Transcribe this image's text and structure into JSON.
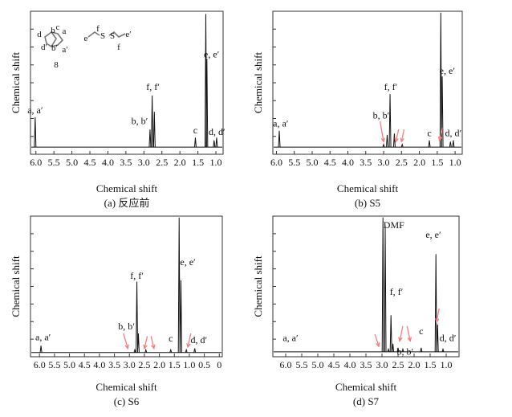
{
  "chart_data": [
    {
      "type": "line",
      "caption": "(a) 反应前",
      "xlabel": "Chemical shift",
      "ylabel": "Chemical shift",
      "xlim": [
        6.15,
        0.8
      ],
      "xticks": [
        "6.0",
        "5.5",
        "5.0",
        "4.5",
        "4.0",
        "3.5",
        "3.0",
        "2.5",
        "2.0",
        "1.5",
        "1.0"
      ],
      "tick_values": [
        6.0,
        5.5,
        5.0,
        4.5,
        4.0,
        3.5,
        3.0,
        2.5,
        2.0,
        1.5,
        1.0
      ],
      "ylim": [
        0,
        1
      ],
      "peaks": [
        {
          "x": 6.02,
          "y": 0.22,
          "label": "a, a′",
          "lx": 6.02,
          "ly": 0.25
        },
        {
          "x": 2.83,
          "y": 0.13,
          "label": "b, b′",
          "lx": 3.12,
          "ly": 0.17
        },
        {
          "x": 2.77,
          "y": 0.38,
          "label": "f, f′",
          "lx": 2.75,
          "ly": 0.42
        },
        {
          "x": 2.71,
          "y": 0.26
        },
        {
          "x": 1.57,
          "y": 0.07,
          "label": "c",
          "lx": 1.57,
          "ly": 0.1
        },
        {
          "x": 1.28,
          "y": 0.98,
          "label": "e, e′",
          "lx": 1.12,
          "ly": 0.66
        },
        {
          "x": 1.25,
          "y": 0.65
        },
        {
          "x": 1.05,
          "y": 0.05,
          "label": "d, d′",
          "lx": 0.97,
          "ly": 0.09
        },
        {
          "x": 0.98,
          "y": 0.07
        }
      ],
      "arrows": [],
      "annotations": [
        "d",
        "b",
        "c",
        "a",
        "d′",
        "b′",
        "a′",
        "8",
        "f",
        "S",
        "S",
        "e",
        "e′",
        "f"
      ]
    },
    {
      "type": "line",
      "caption": "(b) S5",
      "xlabel": "Chemical shift",
      "ylabel": "Chemical shift",
      "xlim": [
        6.1,
        0.8
      ],
      "xticks": [
        "6.0",
        "5.5",
        "5.0",
        "4.5",
        "4.0",
        "3.5",
        "3.0",
        "2.5",
        "2.0",
        "1.5",
        "1.0"
      ],
      "tick_values": [
        6.0,
        5.5,
        5.0,
        4.5,
        4.0,
        3.5,
        3.0,
        2.5,
        2.0,
        1.5,
        1.0
      ],
      "ylim": [
        0,
        1
      ],
      "peaks": [
        {
          "x": 5.92,
          "y": 0.12,
          "label": "a, a′",
          "lx": 5.88,
          "ly": 0.15
        },
        {
          "x": 3.0,
          "y": 0.02
        },
        {
          "x": 2.9,
          "y": 0.09,
          "label": "b, b′",
          "lx": 3.07,
          "ly": 0.21
        },
        {
          "x": 2.82,
          "y": 0.39,
          "label": "f, f′",
          "lx": 2.8,
          "ly": 0.42
        },
        {
          "x": 2.7,
          "y": 0.1
        },
        {
          "x": 2.48,
          "y": 0.02
        },
        {
          "x": 1.72,
          "y": 0.05,
          "label": "c",
          "lx": 1.72,
          "ly": 0.08
        },
        {
          "x": 1.4,
          "y": 0.99,
          "label": "e, e′",
          "lx": 1.22,
          "ly": 0.54
        },
        {
          "x": 1.36,
          "y": 0.52
        },
        {
          "x": 1.13,
          "y": 0.04,
          "label": "d, d′",
          "lx": 1.05,
          "ly": 0.08
        },
        {
          "x": 1.05,
          "y": 0.05
        }
      ],
      "arrows": [
        {
          "x1": 3.1,
          "y1": 0.19,
          "x2": 3.0,
          "y2": 0.04
        },
        {
          "x1": 2.58,
          "y1": 0.13,
          "x2": 2.66,
          "y2": 0.04
        },
        {
          "x1": 2.43,
          "y1": 0.13,
          "x2": 2.5,
          "y2": 0.04
        },
        {
          "x1": 1.35,
          "y1": 0.14,
          "x2": 1.44,
          "y2": 0.05
        }
      ],
      "annotations": []
    },
    {
      "type": "line",
      "caption": "(c) S6",
      "xlabel": "Chemical shift",
      "ylabel": "Chemical shift",
      "xlim": [
        6.3,
        -0.1
      ],
      "xticks": [
        "6.0",
        "5.5",
        "5.0",
        "4.5",
        "4.0",
        "3.5",
        "3.0",
        "2.5",
        "2.0",
        "1.5",
        "1.0",
        "0.5",
        "0"
      ],
      "tick_values": [
        6.0,
        5.5,
        5.0,
        4.5,
        4.0,
        3.5,
        3.0,
        2.5,
        2.0,
        1.5,
        1.0,
        0.5,
        0.0
      ],
      "ylim": [
        0,
        1
      ],
      "peaks": [
        {
          "x": 5.95,
          "y": 0.05,
          "label": "a, a′",
          "lx": 5.88,
          "ly": 0.09
        },
        {
          "x": 2.82,
          "y": 0.02
        },
        {
          "x": 2.75,
          "y": 0.52,
          "label": "f, f′",
          "lx": 2.75,
          "ly": 0.54
        },
        {
          "x": 2.7,
          "y": 0.14,
          "label": "b, b′",
          "lx": 3.1,
          "ly": 0.17
        },
        {
          "x": 2.45,
          "y": 0.02
        },
        {
          "x": 1.62,
          "y": 0.02,
          "label": "c",
          "lx": 1.62,
          "ly": 0.08
        },
        {
          "x": 1.34,
          "y": 0.99,
          "label": "e, e′",
          "lx": 1.05,
          "ly": 0.64
        },
        {
          "x": 1.28,
          "y": 0.53
        },
        {
          "x": 1.1,
          "y": 0.02
        },
        {
          "x": 0.82,
          "y": 0.03,
          "label": "d, d′",
          "lx": 0.68,
          "ly": 0.07
        }
      ],
      "arrows": [
        {
          "x1": 3.2,
          "y1": 0.14,
          "x2": 3.05,
          "y2": 0.03
        },
        {
          "x1": 2.4,
          "y1": 0.12,
          "x2": 2.5,
          "y2": 0.03
        },
        {
          "x1": 2.28,
          "y1": 0.12,
          "x2": 2.18,
          "y2": 0.03
        },
        {
          "x1": 0.95,
          "y1": 0.14,
          "x2": 1.05,
          "y2": 0.04
        }
      ],
      "annotations": []
    },
    {
      "type": "line",
      "caption": "(d) S7",
      "xlabel": "Chemical shift",
      "ylabel": "Chemical shift",
      "xlim": [
        6.4,
        0.6
      ],
      "xticks": [
        "6.0",
        "5.5",
        "5.0",
        "4.5",
        "4.0",
        "3.5",
        "3.0",
        "2.5",
        "2.0",
        "1.5",
        "1.0"
      ],
      "tick_values": [
        6.0,
        5.5,
        5.0,
        4.5,
        4.0,
        3.5,
        3.0,
        2.5,
        2.0,
        1.5,
        1.0
      ],
      "ylim": [
        0,
        1
      ],
      "peaks": [
        {
          "x": 2.97,
          "y": 0.99,
          "label": "DMF",
          "lx": 2.63,
          "ly": 0.91
        },
        {
          "x": 2.9,
          "y": 0.93
        },
        {
          "x": 2.8,
          "y": 0.02
        },
        {
          "x": 2.72,
          "y": 0.27,
          "label": "f, f′",
          "lx": 2.55,
          "ly": 0.42
        },
        {
          "x": 2.66,
          "y": 0.06
        },
        {
          "x": 2.5,
          "y": 0.03
        },
        {
          "x": 2.35,
          "y": 0.02,
          "label": "b, b′",
          "lx": 2.28,
          "ly": -0.02
        },
        {
          "x": 1.78,
          "y": 0.03,
          "label": "c",
          "lx": 1.78,
          "ly": 0.13
        },
        {
          "x": 1.32,
          "y": 0.72,
          "label": "e, e′",
          "lx": 1.4,
          "ly": 0.84
        },
        {
          "x": 1.27,
          "y": 0.2
        },
        {
          "x": 1.1,
          "y": 0.02,
          "label": "d, d′",
          "lx": 0.95,
          "ly": 0.08
        }
      ],
      "arrows": [
        {
          "x1": 3.22,
          "y1": 0.13,
          "x2": 3.1,
          "y2": 0.04
        },
        {
          "x1": 2.35,
          "y1": 0.19,
          "x2": 2.45,
          "y2": 0.08
        },
        {
          "x1": 2.22,
          "y1": 0.19,
          "x2": 2.12,
          "y2": 0.08
        },
        {
          "x1": 1.22,
          "y1": 0.32,
          "x2": 1.3,
          "y2": 0.22
        }
      ],
      "annotations": [
        "a, a′"
      ]
    }
  ]
}
